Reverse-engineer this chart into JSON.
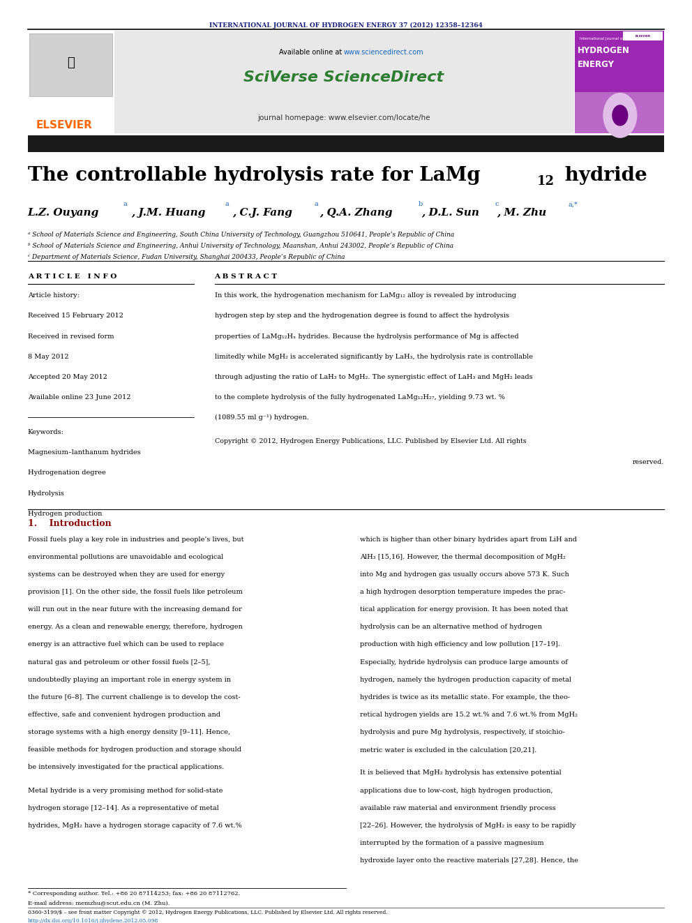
{
  "page_width": 9.92,
  "page_height": 13.23,
  "bg_color": "#ffffff",
  "journal_header_text": "INTERNATIONAL JOURNAL OF HYDROGEN ENERGY 37 (2012) 12358–12364",
  "journal_header_color": "#1a237e",
  "available_url_color": "#1565c0",
  "elsevier_color": "#ff6600",
  "sciverse_color": "#2e7d32",
  "black_bar_color": "#1a1a1a",
  "article_info_header": "A R T I C L E   I N F O",
  "abstract_header": "A B S T R A C T",
  "article_history_label": "Article history:",
  "received1": "Received 15 February 2012",
  "received2": "Received in revised form",
  "received2b": "8 May 2012",
  "accepted": "Accepted 20 May 2012",
  "available_online": "Available online 23 June 2012",
  "keywords_label": "Keywords:",
  "keyword1": "Magnesium–lanthanum hydrides",
  "keyword2": "Hydrogenation degree",
  "keyword3": "Hydrolysis",
  "keyword4": "Hydrogen production",
  "affil_a": "ᵃ School of Materials Science and Engineering, South China University of Technology, Guangzhou 510641, People’s Republic of China",
  "affil_b": "ᵇ School of Materials Science and Engineering, Anhui University of Technology, Maanshan, Anhui 243002, People’s Republic of China",
  "affil_c": "ᶜ Department of Materials Science, Fudan University, Shanghai 200433, People’s Republic of China",
  "intro_color": "#8b0000",
  "footnote_star": "* Corresponding author. Tel.: +86 20 87114253; fax: +86 20 87112762.",
  "footnote_email": "E-mail address: memzhu@scut.edu.cn (M. Zhu).",
  "footnote_issn": "0360-3199/$ – see front matter Copyright © 2012, Hydrogen Energy Publications, LLC. Published by Elsevier Ltd. All rights reserved.",
  "footnote_doi": "http://dx.doi.org/10.1016/j.ijhydene.2012.05.098"
}
